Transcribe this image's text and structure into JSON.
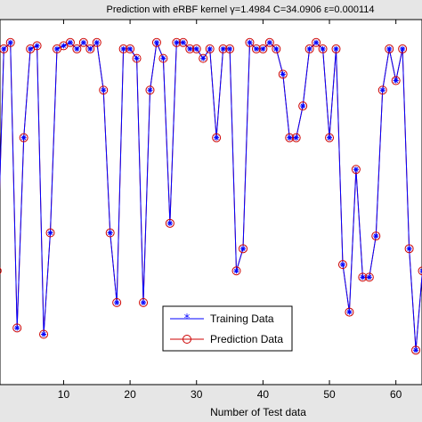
{
  "chart_data": {
    "type": "line",
    "title": "Prediction with eRBF kernel  γ=1.4984  C=34.0906   ε=0.000114",
    "xlabel": "Number of Test data",
    "ylabel": "",
    "xlim": [
      0,
      65
    ],
    "ylim": [
      0,
      1.05
    ],
    "xticks": [
      10,
      20,
      30,
      40,
      50,
      60
    ],
    "grid": false,
    "legend_position": "lower-center",
    "series": [
      {
        "name": "Training Data",
        "color": "#0000ff",
        "marker": "asterisk",
        "x": [
          0,
          1,
          2,
          3,
          4,
          5,
          6,
          7,
          8,
          9,
          10,
          11,
          12,
          13,
          14,
          15,
          16,
          17,
          18,
          19,
          20,
          21,
          22,
          23,
          24,
          25,
          26,
          27,
          28,
          29,
          30,
          31,
          32,
          33,
          34,
          35,
          36,
          37,
          38,
          39,
          40,
          41,
          42,
          43,
          44,
          45,
          46,
          47,
          48,
          49,
          50,
          51,
          52,
          53,
          54,
          55,
          56,
          57,
          58,
          59,
          60,
          61,
          62,
          63,
          64
        ],
        "y": [
          0.28,
          0.98,
          1.0,
          0.1,
          0.7,
          0.98,
          0.99,
          0.08,
          0.4,
          0.98,
          0.99,
          1.0,
          0.98,
          1.0,
          0.98,
          1.0,
          0.85,
          0.4,
          0.18,
          0.98,
          0.98,
          0.95,
          0.18,
          0.85,
          1.0,
          0.95,
          0.43,
          1.0,
          1.0,
          0.98,
          0.98,
          0.95,
          0.98,
          0.7,
          0.98,
          0.98,
          0.28,
          0.35,
          1.0,
          0.98,
          0.98,
          1.0,
          0.98,
          0.9,
          0.7,
          0.7,
          0.8,
          0.98,
          1.0,
          0.98,
          0.7,
          0.98,
          0.3,
          0.15,
          0.6,
          0.26,
          0.26,
          0.39,
          0.85,
          0.98,
          0.88,
          0.98,
          0.35,
          0.03,
          0.28
        ]
      },
      {
        "name": "Prediction Data",
        "color": "#cc0000",
        "marker": "circle",
        "x": [
          0,
          1,
          2,
          3,
          4,
          5,
          6,
          7,
          8,
          9,
          10,
          11,
          12,
          13,
          14,
          15,
          16,
          17,
          18,
          19,
          20,
          21,
          22,
          23,
          24,
          25,
          26,
          27,
          28,
          29,
          30,
          31,
          32,
          33,
          34,
          35,
          36,
          37,
          38,
          39,
          40,
          41,
          42,
          43,
          44,
          45,
          46,
          47,
          48,
          49,
          50,
          51,
          52,
          53,
          54,
          55,
          56,
          57,
          58,
          59,
          60,
          61,
          62,
          63,
          64
        ],
        "y": [
          0.28,
          0.98,
          1.0,
          0.1,
          0.7,
          0.98,
          0.99,
          0.08,
          0.4,
          0.98,
          0.99,
          1.0,
          0.98,
          1.0,
          0.98,
          1.0,
          0.85,
          0.4,
          0.18,
          0.98,
          0.98,
          0.95,
          0.18,
          0.85,
          1.0,
          0.95,
          0.43,
          1.0,
          1.0,
          0.98,
          0.98,
          0.95,
          0.98,
          0.7,
          0.98,
          0.98,
          0.28,
          0.35,
          1.0,
          0.98,
          0.98,
          1.0,
          0.98,
          0.9,
          0.7,
          0.7,
          0.8,
          0.98,
          1.0,
          0.98,
          0.7,
          0.98,
          0.3,
          0.15,
          0.6,
          0.26,
          0.26,
          0.39,
          0.85,
          0.98,
          0.88,
          0.98,
          0.35,
          0.03,
          0.28
        ]
      }
    ]
  }
}
